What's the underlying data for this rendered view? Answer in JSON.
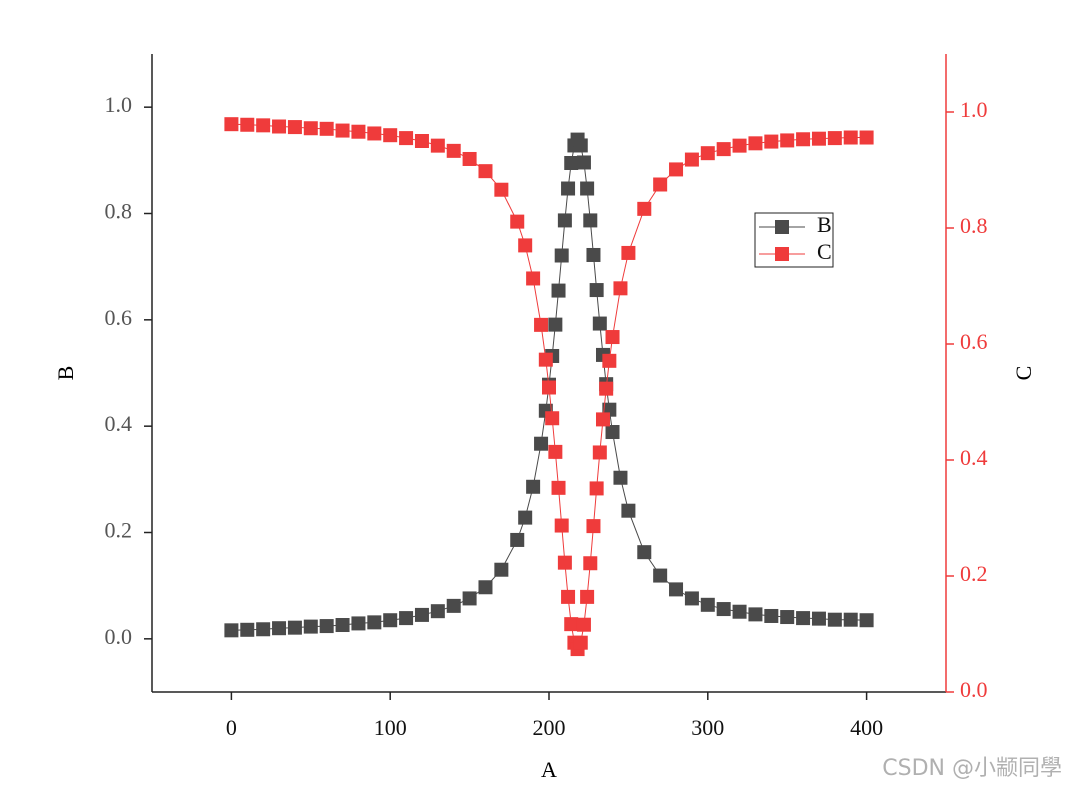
{
  "chart_data": {
    "type": "scatter",
    "x_label": "A",
    "y_label": "B",
    "y2_label": "C",
    "x": [
      0,
      10,
      20,
      30,
      40,
      50,
      60,
      70,
      80,
      90,
      100,
      110,
      120,
      130,
      140,
      150,
      160,
      170,
      180,
      185,
      190,
      195,
      198,
      200,
      202,
      204,
      206,
      208,
      210,
      212,
      214,
      216,
      218,
      220,
      222,
      224,
      226,
      228,
      230,
      232,
      234,
      236,
      238,
      240,
      245,
      250,
      260,
      270,
      280,
      290,
      300,
      310,
      320,
      330,
      340,
      350,
      360,
      370,
      380,
      390,
      400
    ],
    "series": [
      {
        "name": "B",
        "color": "#4a4a4a",
        "axis": "y",
        "values": [
          0.016,
          0.017,
          0.018,
          0.02,
          0.021,
          0.023,
          0.024,
          0.026,
          0.029,
          0.031,
          0.035,
          0.039,
          0.045,
          0.052,
          0.062,
          0.076,
          0.097,
          0.13,
          0.186,
          0.228,
          0.286,
          0.367,
          0.429,
          0.478,
          0.532,
          0.591,
          0.655,
          0.721,
          0.787,
          0.847,
          0.895,
          0.928,
          0.939,
          0.928,
          0.896,
          0.847,
          0.787,
          0.722,
          0.656,
          0.593,
          0.534,
          0.479,
          0.431,
          0.389,
          0.303,
          0.241,
          0.163,
          0.119,
          0.093,
          0.076,
          0.064,
          0.056,
          0.051,
          0.046,
          0.043,
          0.041,
          0.039,
          0.038,
          0.036,
          0.036,
          0.035
        ]
      },
      {
        "name": "C",
        "color": "#ef3b3b",
        "axis": "y2",
        "values": [
          0.979,
          0.978,
          0.977,
          0.975,
          0.974,
          0.972,
          0.971,
          0.968,
          0.966,
          0.963,
          0.96,
          0.955,
          0.95,
          0.942,
          0.933,
          0.919,
          0.898,
          0.866,
          0.811,
          0.77,
          0.713,
          0.633,
          0.573,
          0.525,
          0.472,
          0.414,
          0.352,
          0.287,
          0.223,
          0.164,
          0.117,
          0.085,
          0.074,
          0.085,
          0.116,
          0.164,
          0.222,
          0.286,
          0.351,
          0.413,
          0.47,
          0.523,
          0.571,
          0.612,
          0.696,
          0.757,
          0.833,
          0.875,
          0.901,
          0.918,
          0.929,
          0.936,
          0.942,
          0.946,
          0.949,
          0.951,
          0.953,
          0.954,
          0.955,
          0.956,
          0.956
        ]
      }
    ],
    "xlim": [
      -50,
      450
    ],
    "xticks": [
      0,
      100,
      200,
      300,
      400
    ],
    "ylim": [
      -0.1,
      1.1
    ],
    "yticks": [
      {
        "value": 0,
        "label": "0.0"
      },
      0.2,
      0.4,
      0.6,
      0.8,
      {
        "value": 1,
        "label": "1.0"
      }
    ],
    "y2lim": [
      0,
      1.1
    ],
    "y2ticks": [
      {
        "value": 0,
        "label": "0.0"
      },
      0.2,
      0.4,
      0.6,
      0.8,
      {
        "value": 1,
        "label": "1.0"
      }
    ],
    "y2_color": "#ef3b3b",
    "watermark": "CSDN @小颛同學"
  }
}
